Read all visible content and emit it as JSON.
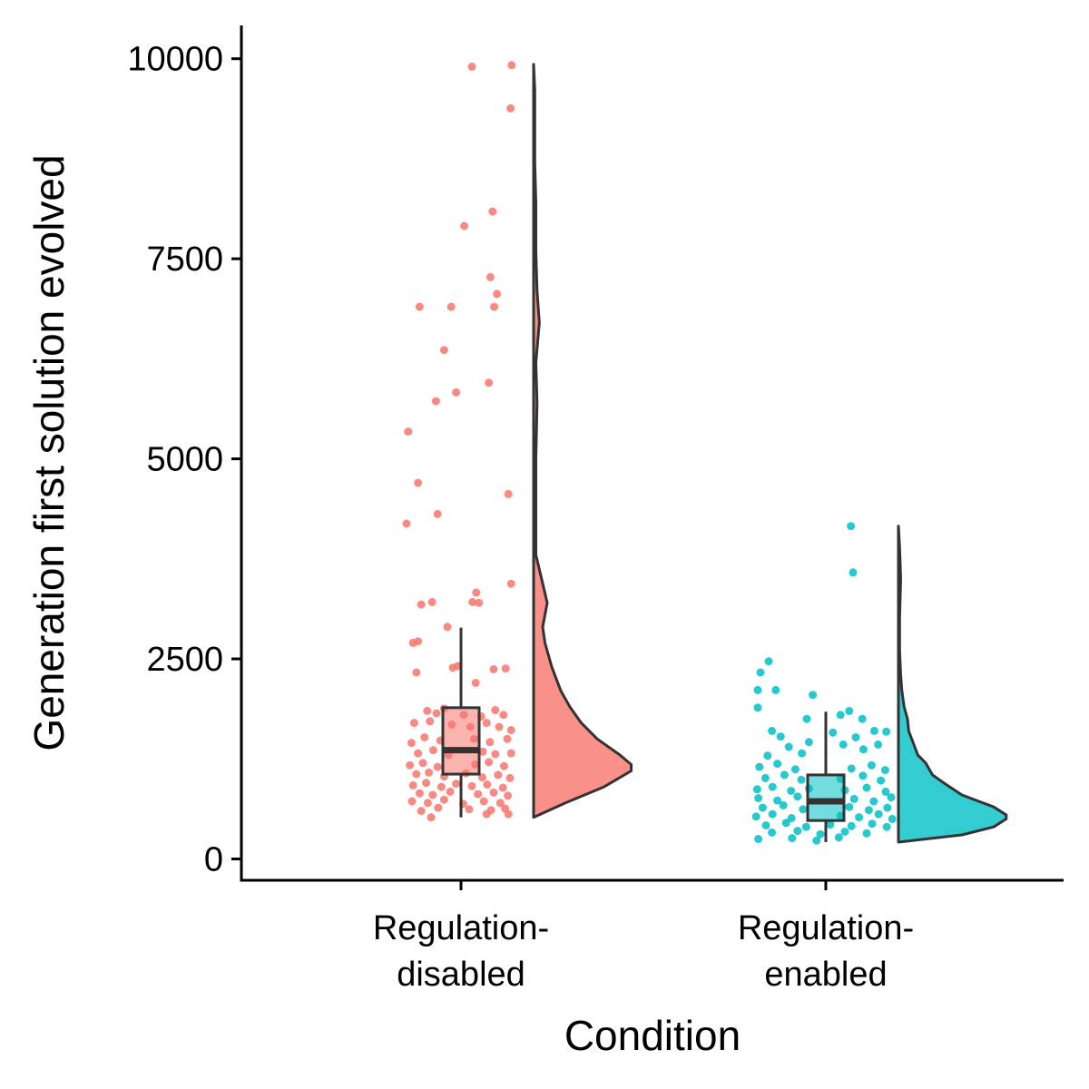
{
  "chart_data": {
    "type": "raincloud",
    "xlabel": "Condition",
    "ylabel": "Generation first solution evolved",
    "ylim": [
      -250,
      10450
    ],
    "yticks": [
      0,
      2500,
      5000,
      7500,
      10000
    ],
    "grid": false,
    "legend": "none",
    "categories": [
      {
        "id": "disabled",
        "label_line1": "Regulation-",
        "label_line2": "disabled",
        "color": "#F8766D",
        "box": {
          "min": 520,
          "q1": 1060,
          "median": 1360,
          "q3": 1890,
          "max": 2890
        },
        "violin": {
          "y": [
            520,
            700,
            900,
            1100,
            1180,
            1300,
            1500,
            1700,
            1900,
            2100,
            2400,
            2700,
            2900,
            3200,
            3500,
            3800,
            4300,
            5000,
            5700,
            6200,
            6700,
            7100,
            7600,
            8200,
            8700,
            9200,
            9600,
            9930
          ],
          "width": [
            0.0,
            0.28,
            0.62,
            0.86,
            0.86,
            0.76,
            0.56,
            0.42,
            0.32,
            0.24,
            0.16,
            0.1,
            0.08,
            0.12,
            0.07,
            0.02,
            0.02,
            0.02,
            0.03,
            0.02,
            0.05,
            0.03,
            0.02,
            0.02,
            0.01,
            0.01,
            0.01,
            0.0
          ]
        },
        "points": [
          [
            0.2,
            9900
          ],
          [
            0.93,
            9920
          ],
          [
            0.91,
            9380
          ],
          [
            0.06,
            7910
          ],
          [
            0.58,
            8090
          ],
          [
            0.54,
            7270
          ],
          [
            0.66,
            7060
          ],
          [
            0.61,
            6900
          ],
          [
            -0.76,
            6900
          ],
          [
            -0.18,
            6900
          ],
          [
            -0.31,
            6360
          ],
          [
            -0.09,
            5830
          ],
          [
            -0.46,
            5720
          ],
          [
            0.51,
            5950
          ],
          [
            -0.97,
            5340
          ],
          [
            -0.79,
            4700
          ],
          [
            -0.43,
            4310
          ],
          [
            -1.0,
            4190
          ],
          [
            0.87,
            4560
          ],
          [
            0.92,
            3440
          ],
          [
            0.28,
            3330
          ],
          [
            0.21,
            3210
          ],
          [
            0.33,
            3200
          ],
          [
            -0.53,
            3210
          ],
          [
            -0.73,
            3180
          ],
          [
            -0.25,
            2900
          ],
          [
            -0.88,
            2700
          ],
          [
            -0.79,
            2720
          ],
          [
            -0.82,
            2330
          ],
          [
            0.6,
            2370
          ],
          [
            0.82,
            2380
          ],
          [
            -0.06,
            2410
          ],
          [
            -0.15,
            2390
          ],
          [
            0.27,
            2200
          ],
          [
            -0.62,
            1850
          ],
          [
            -0.45,
            1820
          ],
          [
            -0.31,
            1880
          ],
          [
            0.05,
            1800
          ],
          [
            0.37,
            1780
          ],
          [
            0.63,
            1860
          ],
          [
            0.78,
            1800
          ],
          [
            -0.86,
            1700
          ],
          [
            -0.57,
            1720
          ],
          [
            -0.17,
            1680
          ],
          [
            0.17,
            1650
          ],
          [
            0.47,
            1700
          ],
          [
            0.7,
            1650
          ],
          [
            0.92,
            1610
          ],
          [
            -0.91,
            1450
          ],
          [
            -0.67,
            1520
          ],
          [
            -0.38,
            1480
          ],
          [
            0.24,
            1500
          ],
          [
            0.53,
            1460
          ],
          [
            0.85,
            1500
          ],
          [
            -0.79,
            1320
          ],
          [
            -0.51,
            1360
          ],
          [
            -0.23,
            1300
          ],
          [
            0.4,
            1340
          ],
          [
            0.63,
            1310
          ],
          [
            0.92,
            1320
          ],
          [
            -0.94,
            1170
          ],
          [
            -0.7,
            1200
          ],
          [
            -0.43,
            1150
          ],
          [
            0.26,
            1180
          ],
          [
            0.51,
            1210
          ],
          [
            0.79,
            1160
          ],
          [
            -0.82,
            1060
          ],
          [
            -0.59,
            1080
          ],
          [
            -0.31,
            1030
          ],
          [
            0.09,
            1070
          ],
          [
            0.39,
            1020
          ],
          [
            0.68,
            1050
          ],
          [
            0.9,
            1010
          ],
          [
            -0.88,
            920
          ],
          [
            -0.64,
            950
          ],
          [
            -0.36,
            900
          ],
          [
            -0.09,
            940
          ],
          [
            0.2,
            910
          ],
          [
            0.48,
            930
          ],
          [
            0.77,
            890
          ],
          [
            -0.76,
            820
          ],
          [
            -0.52,
            800
          ],
          [
            -0.2,
            840
          ],
          [
            0.31,
            810
          ],
          [
            0.6,
            830
          ],
          [
            0.86,
            790
          ],
          [
            -0.9,
            720
          ],
          [
            -0.61,
            700
          ],
          [
            -0.31,
            740
          ],
          [
            0.04,
            690
          ],
          [
            0.42,
            720
          ],
          [
            0.72,
            700
          ],
          [
            -0.73,
            600
          ],
          [
            -0.42,
            640
          ],
          [
            0.15,
            620
          ],
          [
            0.55,
            610
          ],
          [
            0.81,
            630
          ],
          [
            -0.55,
            520
          ],
          [
            0.47,
            560
          ],
          [
            0.87,
            560
          ]
        ]
      },
      {
        "id": "enabled",
        "label_line1": "Regulation-",
        "label_line2": "enabled",
        "color": "#00BFC4",
        "box": {
          "min": 210,
          "q1": 480,
          "median": 720,
          "q3": 1050,
          "max": 1840
        },
        "violin": {
          "y": [
            210,
            300,
            400,
            500,
            550,
            650,
            800,
            950,
            1050,
            1200,
            1300,
            1450,
            1600,
            1750,
            1900,
            2100,
            2300,
            2600,
            3000,
            3500,
            3900,
            4160
          ],
          "width": [
            0.0,
            0.56,
            0.84,
            0.95,
            0.95,
            0.84,
            0.56,
            0.4,
            0.3,
            0.24,
            0.17,
            0.13,
            0.09,
            0.08,
            0.05,
            0.03,
            0.02,
            0.01,
            0.01,
            0.02,
            0.01,
            0.0
          ]
        },
        "points": [
          [
            0.46,
            4160
          ],
          [
            0.5,
            3580
          ],
          [
            -1.05,
            2470
          ],
          [
            -1.2,
            2330
          ],
          [
            -1.25,
            2110
          ],
          [
            -0.92,
            2110
          ],
          [
            -0.24,
            2050
          ],
          [
            -1.25,
            1890
          ],
          [
            0.43,
            1850
          ],
          [
            0.27,
            1800
          ],
          [
            0.67,
            1750
          ],
          [
            -0.35,
            1750
          ],
          [
            -0.99,
            1600
          ],
          [
            0.13,
            1580
          ],
          [
            0.89,
            1600
          ],
          [
            1.11,
            1590
          ],
          [
            -0.83,
            1530
          ],
          [
            0.55,
            1520
          ],
          [
            -0.68,
            1400
          ],
          [
            -0.31,
            1460
          ],
          [
            0.32,
            1430
          ],
          [
            0.96,
            1430
          ],
          [
            -1.07,
            1290
          ],
          [
            -0.44,
            1320
          ],
          [
            0.69,
            1370
          ],
          [
            -1.22,
            1150
          ],
          [
            -0.89,
            1190
          ],
          [
            -0.56,
            1120
          ],
          [
            0.47,
            1130
          ],
          [
            0.84,
            1170
          ],
          [
            1.09,
            1110
          ],
          [
            -1.11,
            1010
          ],
          [
            -0.76,
            1050
          ],
          [
            -0.45,
            990
          ],
          [
            0.27,
            1000
          ],
          [
            0.68,
            1040
          ],
          [
            1.01,
            980
          ],
          [
            -1.26,
            870
          ],
          [
            -0.98,
            900
          ],
          [
            -0.64,
            850
          ],
          [
            -0.31,
            880
          ],
          [
            0.35,
            860
          ],
          [
            0.75,
            890
          ],
          [
            1.1,
            840
          ],
          [
            -1.24,
            760
          ],
          [
            -0.89,
            730
          ],
          [
            -0.52,
            780
          ],
          [
            0.52,
            750
          ],
          [
            0.88,
            720
          ],
          [
            1.2,
            770
          ],
          [
            -1.16,
            640
          ],
          [
            -0.78,
            670
          ],
          [
            -0.42,
            620
          ],
          [
            0.43,
            650
          ],
          [
            0.79,
            610
          ],
          [
            1.13,
            640
          ],
          [
            -1.28,
            530
          ],
          [
            -0.98,
            560
          ],
          [
            -0.63,
            510
          ],
          [
            0.27,
            540
          ],
          [
            0.61,
            520
          ],
          [
            0.97,
            560
          ],
          [
            1.22,
            500
          ],
          [
            -1.1,
            420
          ],
          [
            -0.73,
            450
          ],
          [
            -0.36,
            400
          ],
          [
            0.08,
            430
          ],
          [
            0.47,
            410
          ],
          [
            0.85,
            440
          ],
          [
            1.12,
            400
          ],
          [
            -0.99,
            330
          ],
          [
            -0.52,
            350
          ],
          [
            -0.1,
            310
          ],
          [
            0.35,
            340
          ],
          [
            0.75,
            320
          ],
          [
            -1.24,
            250
          ],
          [
            -0.62,
            260
          ],
          [
            -0.17,
            230
          ],
          [
            0.24,
            270
          ]
        ]
      }
    ]
  }
}
